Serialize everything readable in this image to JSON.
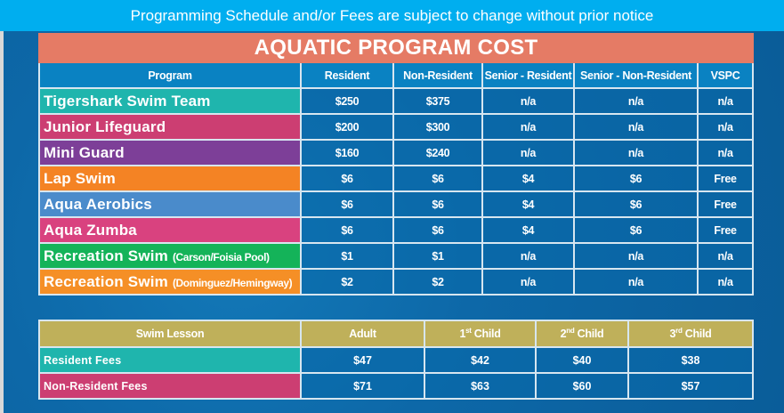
{
  "banner": "Programming Schedule and/or Fees are subject to change without prior notice",
  "program_table": {
    "title": "AQUATIC PROGRAM COST",
    "headers": [
      "Program",
      "Resident",
      "Non-Resident",
      "Senior - Resident",
      "Senior - Non-Resident",
      "VSPC"
    ],
    "rows": [
      {
        "name": "Tigershark Swim Team",
        "note": "",
        "color": "#1fb5ad",
        "values": [
          "$250",
          "$375",
          "n/a",
          "n/a",
          "n/a"
        ]
      },
      {
        "name": "Junior Lifeguard",
        "note": "",
        "color": "#cc3e72",
        "values": [
          "$200",
          "$300",
          "n/a",
          "n/a",
          "n/a"
        ]
      },
      {
        "name": "Mini Guard",
        "note": "",
        "color": "#7d3f98",
        "values": [
          "$160",
          "$240",
          "n/a",
          "n/a",
          "n/a"
        ]
      },
      {
        "name": "Lap Swim",
        "note": "",
        "color": "#f48324",
        "values": [
          "$6",
          "$6",
          "$4",
          "$6",
          "Free"
        ]
      },
      {
        "name": "Aqua Aerobics",
        "note": "",
        "color": "#4a8bcb",
        "values": [
          "$6",
          "$6",
          "$4",
          "$6",
          "Free"
        ]
      },
      {
        "name": "Aqua Zumba",
        "note": "",
        "color": "#d9427f",
        "values": [
          "$6",
          "$6",
          "$4",
          "$6",
          "Free"
        ]
      },
      {
        "name": "Recreation Swim",
        "note": "(Carson/Foisia Pool)",
        "color": "#14b359",
        "values": [
          "$1",
          "$1",
          "n/a",
          "n/a",
          "n/a"
        ]
      },
      {
        "name": "Recreation Swim",
        "note": "(Dominguez/Hemingway)",
        "color": "#f58f26",
        "values": [
          "$2",
          "$2",
          "n/a",
          "n/a",
          "n/a"
        ]
      }
    ]
  },
  "lesson_table": {
    "headers": [
      {
        "text": "Swim Lesson",
        "sup": ""
      },
      {
        "text": "Adult",
        "sup": ""
      },
      {
        "num": "1",
        "sup": "st",
        "text": " Child"
      },
      {
        "num": "2",
        "sup": "nd",
        "text": " Child"
      },
      {
        "num": "3",
        "sup": "rd",
        "text": " Child"
      }
    ],
    "rows": [
      {
        "name": "Resident Fees",
        "color": "#1fb5ad",
        "values": [
          "$47",
          "$42",
          "$40",
          "$38"
        ]
      },
      {
        "name": "Non-Resident Fees",
        "color": "#cc3e72",
        "values": [
          "$71",
          "$63",
          "$60",
          "$57"
        ]
      }
    ]
  }
}
